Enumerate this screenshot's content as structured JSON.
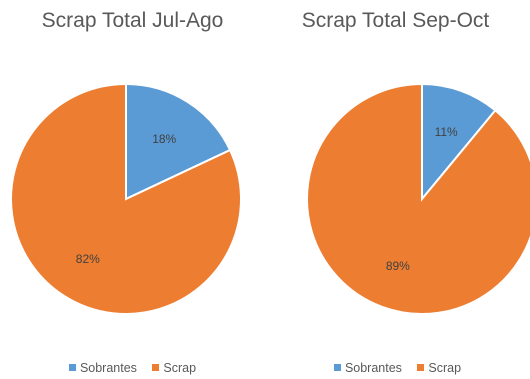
{
  "chart_data": [
    {
      "type": "pie",
      "title": "Scrap Total Jul-Ago",
      "categories": [
        "Sobrantes",
        "Scrap"
      ],
      "values": [
        18,
        82
      ],
      "data_labels": [
        "18%",
        "82%"
      ],
      "colors": [
        "#5B9BD5",
        "#ED7D31"
      ],
      "legend_placement": "bottom"
    },
    {
      "type": "pie",
      "title": "Scrap Total Sep-Oct",
      "categories": [
        "Sobrantes",
        "Scrap"
      ],
      "values": [
        11,
        89
      ],
      "data_labels": [
        "11%",
        "89%"
      ],
      "colors": [
        "#5B9BD5",
        "#ED7D31"
      ],
      "legend_placement": "bottom"
    }
  ]
}
